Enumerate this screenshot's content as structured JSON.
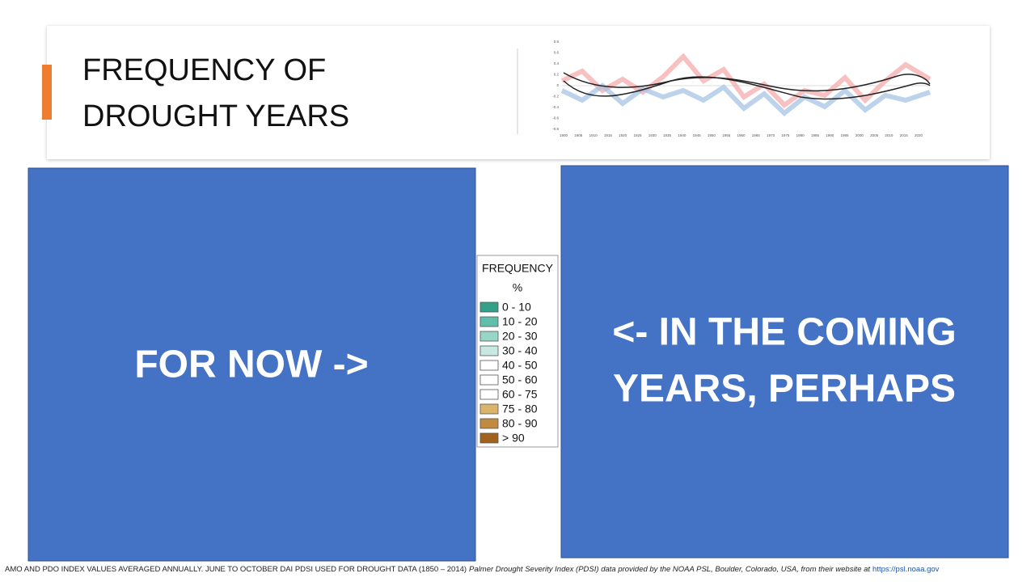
{
  "header": {
    "title_lines": [
      "FREQUENCY OF",
      "DROUGHT YEARS"
    ],
    "figure": {
      "xlabels": [
        "1900",
        "1905",
        "1910",
        "1915",
        "1920",
        "1925",
        "1930",
        "1935",
        "1940",
        "1945",
        "1950",
        "1955",
        "1960",
        "1965",
        "1970",
        "1975",
        "1980",
        "1985",
        "1990",
        "1995",
        "2000",
        "2005",
        "2010",
        "2015",
        "2020"
      ],
      "ylabels": [
        "0.8",
        "0.6",
        "0.4",
        "0.2",
        "0",
        "-0.2",
        "-0.4",
        "-0.6",
        "-0.8"
      ]
    }
  },
  "left_panel": {
    "text": "FOR NOW ->"
  },
  "right_panel": {
    "lines": [
      "<- IN THE COMING",
      "YEARS, PERHAPS"
    ]
  },
  "legend": {
    "title": "FREQUENCY",
    "unit": "%",
    "items": [
      {
        "label": "0 - 10",
        "color": "#35a08a"
      },
      {
        "label": "10 - 20",
        "color": "#5fbfaa"
      },
      {
        "label": "20 - 30",
        "color": "#97d5c6"
      },
      {
        "label": "30 - 40",
        "color": "#c8e9e1"
      },
      {
        "label": "40 - 50",
        "color": "#ffffff"
      },
      {
        "label": "50 - 60",
        "color": "#ffffff"
      },
      {
        "label": "60 - 75",
        "color": "#ffffff"
      },
      {
        "label": "75 - 80",
        "color": "#d9b46a"
      },
      {
        "label": "80 - 90",
        "color": "#c08a40"
      },
      {
        "label": "> 90",
        "color": "#a0621c"
      }
    ]
  },
  "footnote": {
    "text": "AMO AND PDO INDEX VALUES AVERAGED ANNUALLY. JUNE TO OCTOBER DAI PDSI USED FOR DROUGHT DATA (1850 – 2014)",
    "source": "Palmer Drought Severity Index (PDSI) data provided by the NOAA PSL, Boulder, Colorado, USA, from their website at",
    "link": "https://psl.noaa.gov"
  }
}
